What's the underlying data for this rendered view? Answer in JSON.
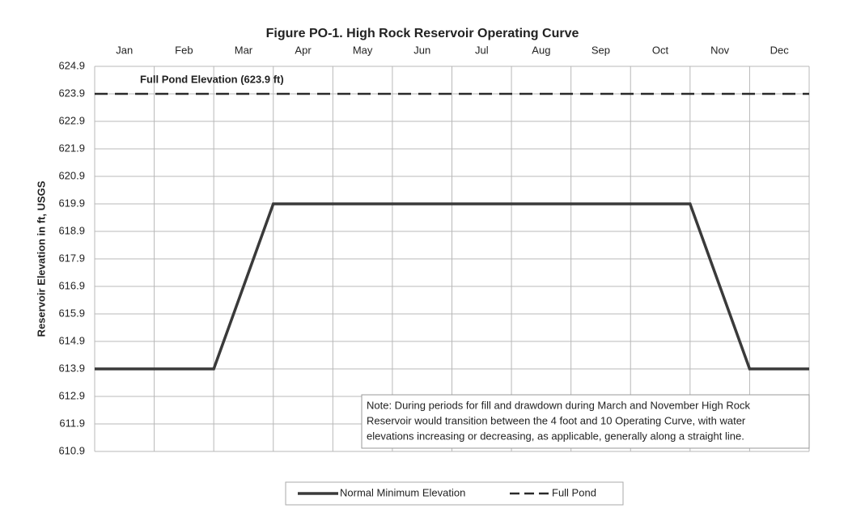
{
  "chart_data": {
    "type": "line",
    "title": "Figure PO-1. High Rock Reservoir Operating Curve",
    "y_label": "Reservoir Elevation in ft, USGS",
    "categories": [
      "Jan",
      "Feb",
      "Mar",
      "Apr",
      "May",
      "Jun",
      "Jul",
      "Aug",
      "Sep",
      "Oct",
      "Nov",
      "Dec"
    ],
    "xlim": [
      0,
      12
    ],
    "ylim": [
      610.9,
      624.9
    ],
    "yticks": [
      610.9,
      611.9,
      612.9,
      613.9,
      614.9,
      615.9,
      616.9,
      617.9,
      618.9,
      619.9,
      620.9,
      621.9,
      622.9,
      623.9,
      624.9
    ],
    "grid": true,
    "series": [
      {
        "name": "Normal Minimum Elevation",
        "color": "#3a3a3a",
        "dash": false,
        "x": [
          0,
          2,
          3,
          10,
          11,
          12
        ],
        "values": [
          613.9,
          613.9,
          619.9,
          619.9,
          613.9,
          613.9
        ]
      },
      {
        "name": "Full Pond",
        "color": "#2a2a2a",
        "dash": true,
        "x": [
          0,
          12
        ],
        "values": [
          623.9,
          623.9
        ]
      }
    ],
    "annotation": "Full Pond Elevation (623.9 ft)",
    "note": [
      "Note:  During periods for fill and drawdown during March and November High Rock",
      "Reservoir would transition between the 4 foot and 10 Operating Curve, with water",
      "elevations increasing or decreasing, as applicable, generally along a straight line."
    ],
    "legend": "bottom"
  }
}
